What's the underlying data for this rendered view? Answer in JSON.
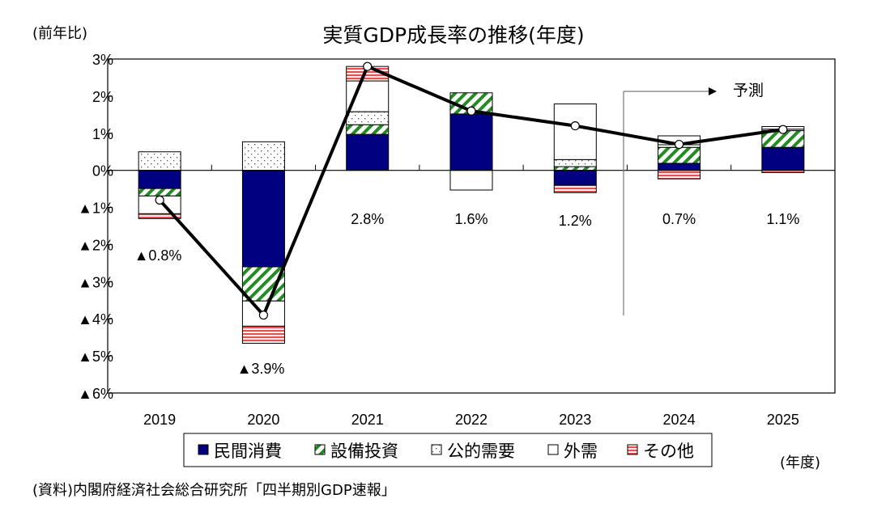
{
  "chart_data": {
    "type": "bar",
    "stacked": true,
    "title": "実質GDP成長率の推移(年度)",
    "ylabel": "(前年比)",
    "xlabel": "(年度)",
    "source": "(資料)内閣府経済社会総合研究所「四半期別GDP速報」",
    "ylim": [
      -6,
      3
    ],
    "yticks": [
      3,
      2,
      1,
      0,
      -1,
      -2,
      -3,
      -4,
      -5,
      -6
    ],
    "ytick_labels": [
      "3%",
      "2%",
      "1%",
      "0%",
      "▲1%",
      "▲2%",
      "▲3%",
      "▲4%",
      "▲5%",
      "▲6%"
    ],
    "categories": [
      "2019",
      "2020",
      "2021",
      "2022",
      "2023",
      "2024",
      "2025"
    ],
    "series": [
      {
        "name": "民間消費",
        "color": "#000080",
        "pattern": "solid",
        "values": [
          -0.49,
          -2.6,
          0.97,
          1.52,
          -0.4,
          0.19,
          0.62
        ]
      },
      {
        "name": "設備投資",
        "color": "#228B22",
        "pattern": "diagonal-hatch",
        "values": [
          -0.2,
          -0.92,
          0.26,
          0.57,
          0.1,
          0.43,
          0.45
        ]
      },
      {
        "name": "公的需要",
        "color": "#555555",
        "pattern": "dots",
        "values": [
          0.5,
          0.77,
          0.35,
          0.0,
          0.19,
          0.07,
          0.04
        ]
      },
      {
        "name": "外需",
        "color": "#ffffff",
        "pattern": "blank",
        "values": [
          -0.48,
          -0.68,
          0.83,
          -0.53,
          1.5,
          0.24,
          0.07
        ]
      },
      {
        "name": "その他",
        "color": "#e03030",
        "pattern": "horizontal-lines",
        "values": [
          -0.13,
          -0.46,
          0.39,
          0.0,
          -0.2,
          -0.23,
          -0.06
        ]
      }
    ],
    "line": {
      "values": [
        -0.8,
        -3.9,
        2.8,
        1.6,
        1.2,
        0.7,
        1.1
      ],
      "color": "#000000"
    },
    "data_labels": [
      "▲0.8%",
      "▲3.9%",
      "2.8%",
      "1.6%",
      "1.2%",
      "0.7%",
      "1.1%"
    ],
    "annotation": {
      "text": "予測",
      "from_category": "2024"
    },
    "legend_placement": "bottom",
    "grid": false
  }
}
